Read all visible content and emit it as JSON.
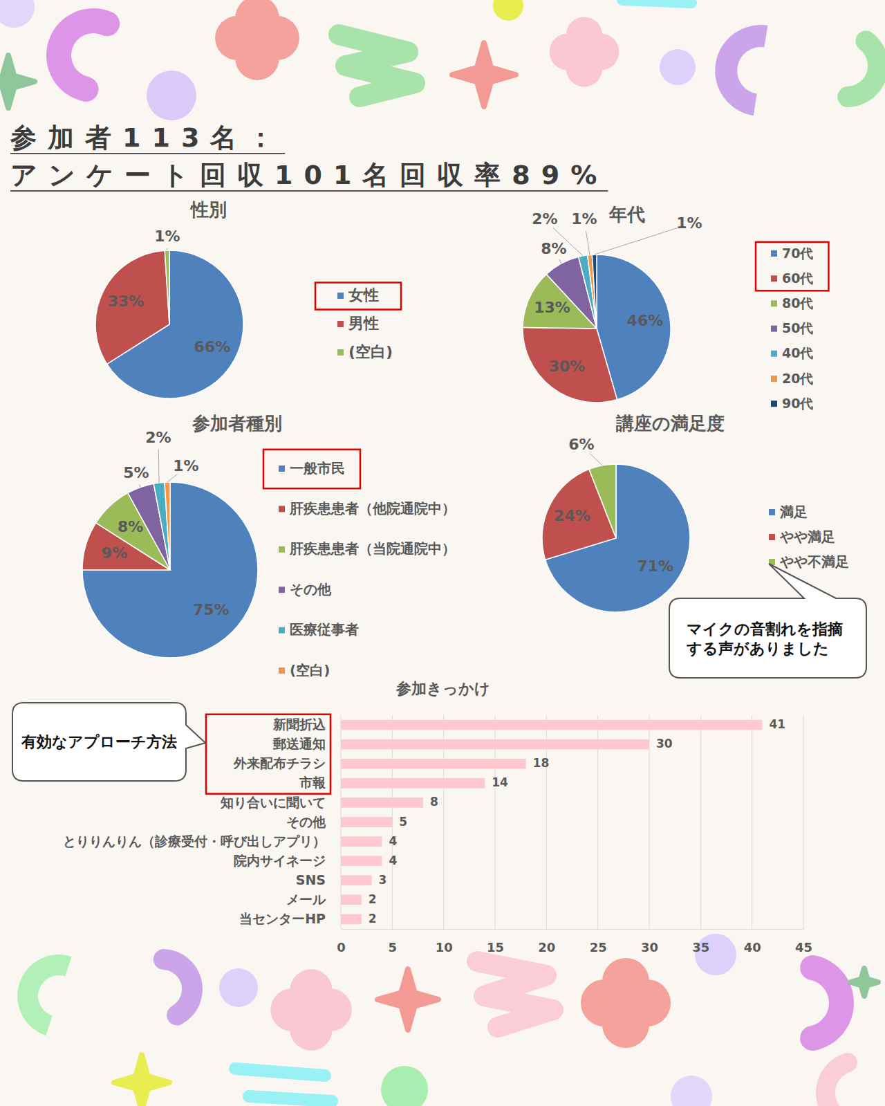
{
  "header": {
    "lines": [
      "参加者113名：",
      "アンケート回収101名回収率89%"
    ]
  },
  "chart_data": [
    {
      "type": "pie",
      "title": "性別",
      "categories": [
        "女性",
        "男性",
        "(空白)"
      ],
      "values": [
        66,
        33,
        1
      ],
      "value_labels": [
        "66%",
        "33%",
        "1%"
      ],
      "colors": [
        "#4f81bd",
        "#c0504d",
        "#9bbb59"
      ],
      "data_labels": true,
      "legend": "right"
    },
    {
      "type": "pie",
      "title": "年代",
      "categories": [
        "70代",
        "60代",
        "80代",
        "50代",
        "40代",
        "20代",
        "90代"
      ],
      "values": [
        46,
        30,
        13,
        8,
        2,
        1,
        1
      ],
      "value_labels": [
        "46%",
        "30%",
        "13%",
        "8%",
        "2%",
        "1%",
        "1%"
      ],
      "colors": [
        "#4f81bd",
        "#c0504d",
        "#9bbb59",
        "#8064a2",
        "#4bacc6",
        "#f79646",
        "#1f497d"
      ],
      "data_labels": true,
      "legend": "right"
    },
    {
      "type": "pie",
      "title": "参加者種別",
      "categories": [
        "一般市民",
        "肝疾患患者（他院通院中）",
        "肝疾患患者（当院通院中）",
        "その他",
        "医療従事者",
        "(空白)"
      ],
      "values": [
        75,
        9,
        8,
        5,
        2,
        1
      ],
      "value_labels": [
        "75%",
        "9%",
        "8%",
        "5%",
        "2%",
        "1%"
      ],
      "colors": [
        "#4f81bd",
        "#c0504d",
        "#9bbb59",
        "#8064a2",
        "#4bacc6",
        "#f79646"
      ],
      "data_labels": true,
      "legend": "right"
    },
    {
      "type": "pie",
      "title": "講座の満足度",
      "categories": [
        "満足",
        "やや満足",
        "やや不満足"
      ],
      "values": [
        71,
        24,
        6
      ],
      "value_labels": [
        "71%",
        "24%",
        "6%"
      ],
      "colors": [
        "#4f81bd",
        "#c0504d",
        "#9bbb59"
      ],
      "data_labels": true,
      "legend": "right",
      "annotations": [
        "マイクの音割れを指摘する声がありました"
      ]
    },
    {
      "type": "bar",
      "title": "参加きっかけ",
      "orientation": "horizontal",
      "categories": [
        "新聞折込",
        "郵送通知",
        "外来配布チラシ",
        "市報",
        "知り合いに聞いて",
        "その他",
        "とりりんりん（診療受付・呼び出しアプリ）",
        "院内サイネージ",
        "SNS",
        "メール",
        "当センターHP"
      ],
      "values": [
        41,
        30,
        18,
        14,
        8,
        5,
        4,
        4,
        3,
        2,
        2
      ],
      "color": "#ffc7ce",
      "xlim": [
        0,
        45
      ],
      "xticks": [
        0,
        5,
        10,
        15,
        20,
        25,
        30,
        35,
        40,
        45
      ],
      "grid": true,
      "data_labels": true,
      "annotations": [
        "有効なアプローチ方法"
      ]
    }
  ]
}
